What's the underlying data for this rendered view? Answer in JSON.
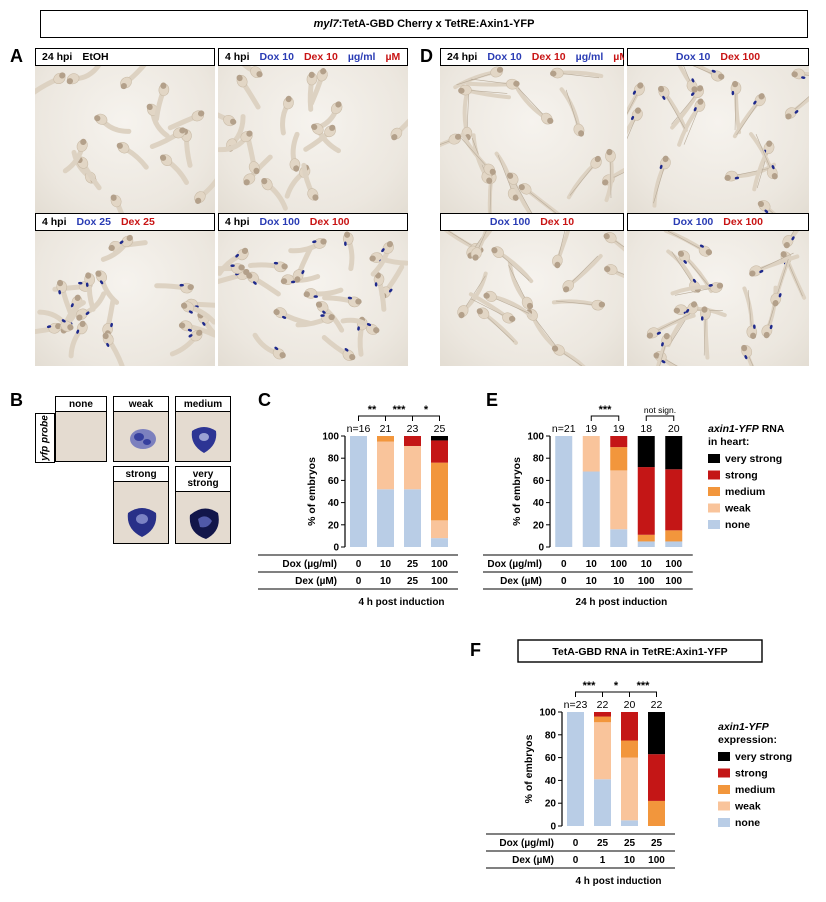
{
  "header": {
    "title_italic": "myl7",
    "title_rest": ":TetA-GBD Cherry x TetRE:Axin1-YFP"
  },
  "panels": {
    "A": "A",
    "B": "B",
    "C": "C",
    "D": "D",
    "E": "E",
    "F": "F"
  },
  "photos_A": [
    {
      "parts": [
        {
          "t": "24 hpi",
          "c": "k"
        },
        {
          "t": "EtOH",
          "c": "k"
        }
      ]
    },
    {
      "parts": [
        {
          "t": "4 hpi",
          "c": "k"
        },
        {
          "t": "Dox 10",
          "c": "b"
        },
        {
          "t": "Dex 10",
          "c": "r"
        },
        {
          "t": "µg/ml",
          "c": "b"
        },
        {
          "t": "µM",
          "c": "r"
        }
      ]
    },
    {
      "parts": [
        {
          "t": "4 hpi",
          "c": "k"
        },
        {
          "t": "Dox 25",
          "c": "b"
        },
        {
          "t": "Dex 25",
          "c": "r"
        }
      ]
    },
    {
      "parts": [
        {
          "t": "4 hpi",
          "c": "k"
        },
        {
          "t": "Dox 100",
          "c": "b"
        },
        {
          "t": "Dex 100",
          "c": "r"
        }
      ]
    }
  ],
  "photos_D": [
    {
      "parts": [
        {
          "t": "24 hpi",
          "c": "k"
        },
        {
          "t": "Dox 10",
          "c": "b"
        },
        {
          "t": "Dex 10",
          "c": "r"
        },
        {
          "t": "µg/ml",
          "c": "b"
        },
        {
          "t": "µM",
          "c": "r"
        }
      ]
    },
    {
      "parts": [
        {
          "t": "Dox 10",
          "c": "b"
        },
        {
          "t": "Dex 100",
          "c": "r"
        }
      ]
    },
    {
      "parts": [
        {
          "t": "Dox 100",
          "c": "b"
        },
        {
          "t": "Dex 10",
          "c": "r"
        }
      ]
    },
    {
      "parts": [
        {
          "t": "Dox 100",
          "c": "b"
        },
        {
          "t": "Dex 100",
          "c": "r"
        }
      ]
    }
  ],
  "panel_B": {
    "probe_label": "yfp probe",
    "categories": [
      "none",
      "weak",
      "medium",
      "strong",
      "very strong"
    ]
  },
  "category_colors": {
    "none": "#b9cde6",
    "weak": "#f9c49b",
    "medium": "#f2963c",
    "strong": "#c41616",
    "very strong": "#000000"
  },
  "chart_data": [
    {
      "panel": "C",
      "type": "bar",
      "ylabel": "% of embryos",
      "ylim": [
        0,
        100
      ],
      "yticks": [
        0,
        20,
        40,
        60,
        80,
        100
      ],
      "n_labels": [
        "n=16",
        "21",
        "23",
        "25"
      ],
      "significance": [
        {
          "from": 0,
          "to": 1,
          "label": "**"
        },
        {
          "from": 1,
          "to": 2,
          "label": "***"
        },
        {
          "from": 2,
          "to": 3,
          "label": "*"
        }
      ],
      "rows": [
        {
          "label": "Dox (µg/ml)",
          "values": [
            "0",
            "10",
            "25",
            "100"
          ]
        },
        {
          "label": "Dex (µM)",
          "values": [
            "0",
            "10",
            "25",
            "100"
          ]
        }
      ],
      "xlabel": "4 h post induction",
      "series": [
        {
          "name": "none",
          "values": [
            100,
            52,
            52,
            8
          ]
        },
        {
          "name": "weak",
          "values": [
            0,
            43,
            39,
            16
          ]
        },
        {
          "name": "medium",
          "values": [
            0,
            5,
            0,
            52
          ]
        },
        {
          "name": "strong",
          "values": [
            0,
            0,
            9,
            20
          ]
        },
        {
          "name": "very strong",
          "values": [
            0,
            0,
            0,
            4
          ]
        }
      ]
    },
    {
      "panel": "E",
      "type": "bar",
      "ylabel": "% of embryos",
      "ylim": [
        0,
        100
      ],
      "yticks": [
        0,
        20,
        40,
        60,
        80,
        100
      ],
      "n_labels": [
        "n=21",
        "19",
        "19",
        "18",
        "20"
      ],
      "significance": [
        {
          "from": 1,
          "to": 2,
          "label": "***"
        },
        {
          "from": 3,
          "to": 4,
          "label": "not sign."
        }
      ],
      "rows": [
        {
          "label": "Dox (µg/ml)",
          "values": [
            "0",
            "10",
            "100",
            "10",
            "100"
          ]
        },
        {
          "label": "Dex (µM)",
          "values": [
            "0",
            "10",
            "10",
            "100",
            "100"
          ]
        }
      ],
      "xlabel": "24 h post induction",
      "series": [
        {
          "name": "none",
          "values": [
            100,
            68,
            16,
            5,
            5
          ]
        },
        {
          "name": "weak",
          "values": [
            0,
            32,
            53,
            0,
            0
          ]
        },
        {
          "name": "medium",
          "values": [
            0,
            0,
            21,
            6,
            10
          ]
        },
        {
          "name": "strong",
          "values": [
            0,
            0,
            10,
            61,
            55
          ]
        },
        {
          "name": "very strong",
          "values": [
            0,
            0,
            0,
            28,
            30
          ]
        }
      ],
      "legend": {
        "title_italic": "axin1-YFP",
        "title_rest": " RNA",
        "title_line2": "in heart:",
        "placement": "right"
      }
    },
    {
      "panel": "F",
      "type": "bar",
      "title": "TetA-GBD RNA in TetRE:Axin1-YFP",
      "ylabel": "% of embryos",
      "ylim": [
        0,
        100
      ],
      "yticks": [
        0,
        20,
        40,
        60,
        80,
        100
      ],
      "n_labels": [
        "n=23",
        "22",
        "20",
        "22"
      ],
      "significance": [
        {
          "from": 0,
          "to": 1,
          "label": "***"
        },
        {
          "from": 1,
          "to": 2,
          "label": "*"
        },
        {
          "from": 2,
          "to": 3,
          "label": "***"
        }
      ],
      "rows": [
        {
          "label": "Dox (µg/ml)",
          "values": [
            "0",
            "25",
            "25",
            "25"
          ]
        },
        {
          "label": "Dex (µM)",
          "values": [
            "0",
            "1",
            "10",
            "100"
          ]
        }
      ],
      "xlabel": "4 h post induction",
      "series": [
        {
          "name": "none",
          "values": [
            100,
            41,
            5,
            0
          ]
        },
        {
          "name": "weak",
          "values": [
            0,
            50,
            55,
            0
          ]
        },
        {
          "name": "medium",
          "values": [
            0,
            5,
            15,
            22
          ]
        },
        {
          "name": "strong",
          "values": [
            0,
            4,
            25,
            41
          ]
        },
        {
          "name": "very strong",
          "values": [
            0,
            0,
            0,
            37
          ]
        }
      ],
      "legend": {
        "title_italic": "axin1-YFP",
        "title_rest": "",
        "title_line2": "expression:",
        "placement": "right"
      }
    }
  ]
}
